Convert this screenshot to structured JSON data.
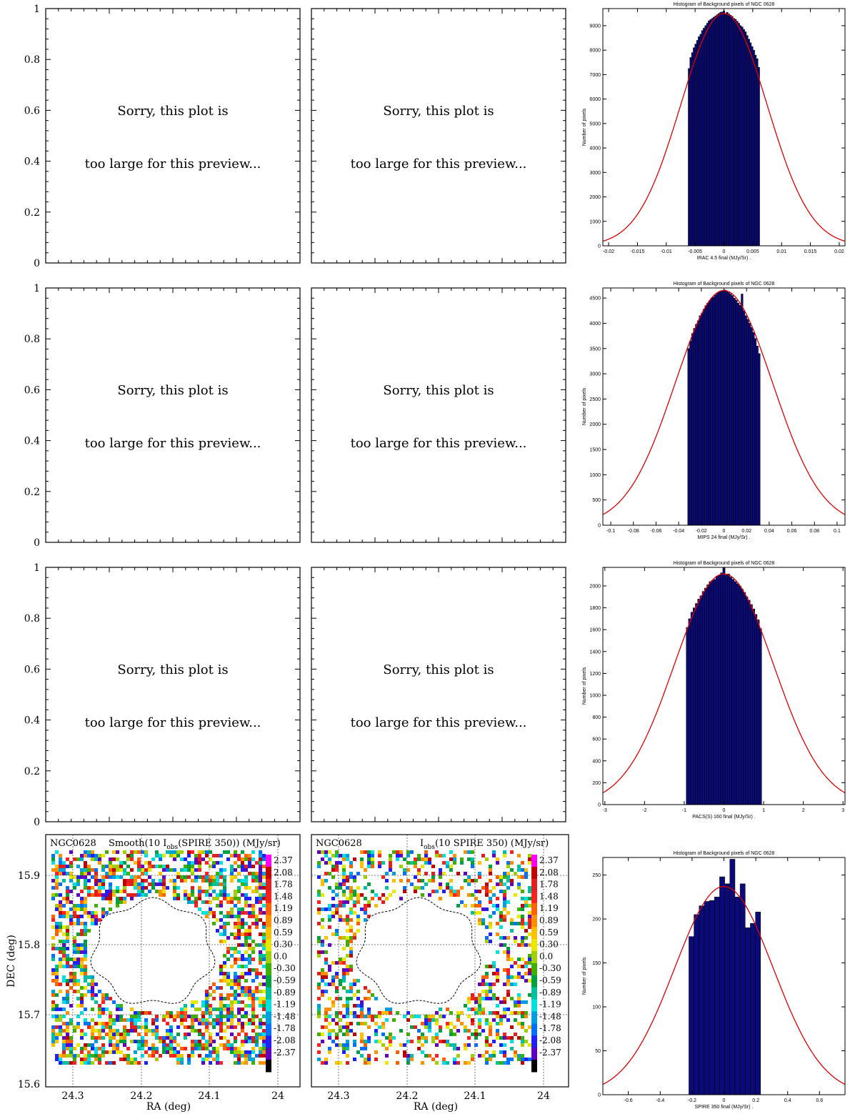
{
  "colors": {
    "bar_fill": "#0a0a78",
    "bar_edge": "#000000",
    "fit_line": "#e00000",
    "axis": "#000000"
  },
  "placeholder": {
    "line1": "Sorry, this plot is",
    "line2": "too large for this preview..."
  },
  "placeholder_yticks": [
    "0",
    "0.2",
    "0.4",
    "0.6",
    "0.8",
    "1"
  ],
  "map_axes": {
    "xlabel": "RA (deg)",
    "ylabel": "DEC (deg)",
    "xticks": [
      "24.3",
      "24.2",
      "24.1",
      "24"
    ],
    "yticks": [
      "15.6",
      "15.7",
      "15.8",
      "15.9"
    ]
  },
  "maps": [
    {
      "galaxy": "NGC0628",
      "title": "Smooth(10 I",
      "title_sub": "obs",
      "title_tail": "(SPIRE 350)) (MJy/sr)"
    },
    {
      "galaxy": "NGC0628",
      "title": "I",
      "title_sub": "obs",
      "title_tail": "(10 SPIRE 350) (MJy/sr)"
    }
  ],
  "colorbar": {
    "labels": [
      "2.37",
      "2.08",
      "1.78",
      "1.48",
      "1.19",
      "0.89",
      "0.59",
      "0.30",
      "0.0",
      "-0.30",
      "-0.59",
      "-0.89",
      "-1.19",
      "-1.48",
      "-1.78",
      "-2.08",
      "-2.37"
    ],
    "colors": [
      "#ff00ff",
      "#c00000",
      "#e02020",
      "#ff2020",
      "#ff6000",
      "#ff9000",
      "#ffc000",
      "#e8e800",
      "#a0d000",
      "#40b000",
      "#00a040",
      "#00c0a0",
      "#00e0e0",
      "#00a0e0",
      "#0070ff",
      "#2020ff",
      "#6000c0",
      "#000000"
    ]
  },
  "chart_data": [
    {
      "type": "bar",
      "title": "Histogram of Background pixels of NGC 0628",
      "xlabel": "IRAC 4.5 final   (MJy/Sr)  .",
      "ylabel": "Number of pixels",
      "xlim": [
        -0.021,
        0.021
      ],
      "ylim": [
        0,
        9700
      ],
      "xticks": [
        -0.02,
        -0.015,
        -0.01,
        -0.005,
        0,
        0.005,
        0.01,
        0.015,
        0.02
      ],
      "xtick_labels": [
        "-0.02",
        "-0.015",
        "-0.01",
        "-0.005",
        "0",
        "0.005",
        "0.01",
        "0.015",
        "0.02"
      ],
      "yticks": [
        0,
        1000,
        2000,
        3000,
        4000,
        5000,
        6000,
        7000,
        8000,
        9000
      ],
      "bin_range": [
        -0.0062,
        0.0062
      ],
      "counts": [
        7250,
        7700,
        7900,
        8100,
        8250,
        8400,
        8550,
        8650,
        8800,
        8900,
        9000,
        9100,
        9200,
        9250,
        9300,
        9350,
        9400,
        9450,
        9500,
        9550,
        9560,
        9600,
        9500,
        9550,
        9480,
        9430,
        9380,
        9300,
        9260,
        9180,
        9100,
        9000,
        8950,
        8850,
        8750,
        8600,
        8450,
        8300,
        8150,
        8000,
        7800,
        7650,
        7300
      ],
      "fit": {
        "amplitude": 9500,
        "mean": 0,
        "sigma": 0.0075
      }
    },
    {
      "type": "bar",
      "title": "Histogram of Background pixels of NGC 0628",
      "xlabel": "MIPS 24 final   (MJy/Sr)  .",
      "ylabel": "Number of pixels",
      "xlim": [
        -0.107,
        0.107
      ],
      "ylim": [
        0,
        4700
      ],
      "xticks": [
        -0.1,
        -0.08,
        -0.06,
        -0.04,
        -0.02,
        0,
        0.02,
        0.04,
        0.06,
        0.08,
        0.1
      ],
      "xtick_labels": [
        "-0.1",
        "-0.08",
        "-0.06",
        "-0.04",
        "-0.02",
        "0",
        "0.02",
        "0.04",
        "0.06",
        "0.08",
        "0.1"
      ],
      "yticks": [
        0,
        500,
        1000,
        1500,
        2000,
        2500,
        3000,
        3500,
        4000,
        4500
      ],
      "bin_range": [
        -0.032,
        0.032
      ],
      "counts": [
        3500,
        3650,
        3800,
        3900,
        3980,
        4050,
        4150,
        4200,
        4280,
        4350,
        4400,
        4450,
        4500,
        4520,
        4560,
        4600,
        4620,
        4640,
        4650,
        4660,
        4640,
        4610,
        4580,
        4550,
        4500,
        4460,
        4400,
        4360,
        4580,
        4250,
        4150,
        4080,
        4000,
        3920,
        3820,
        3700,
        3550,
        3400
      ],
      "fit": {
        "amplitude": 4650,
        "mean": 0,
        "sigma": 0.043
      }
    },
    {
      "type": "bar",
      "title": "Histogram of Background pixels of NGC 0628",
      "xlabel": "PACS(S) 160 final   (MJy/Sr)  .",
      "ylabel": "Number of pixels",
      "xlim": [
        -3.05,
        3.05
      ],
      "ylim": [
        0,
        2170
      ],
      "xticks": [
        -3,
        -2,
        -1,
        0,
        1,
        2,
        3
      ],
      "xtick_labels": [
        "-3",
        "-2",
        "-1",
        "0",
        "1",
        "2",
        "3"
      ],
      "yticks": [
        0,
        200,
        400,
        600,
        800,
        1000,
        1200,
        1400,
        1600,
        1800,
        2000
      ],
      "bin_range": [
        -0.95,
        0.95
      ],
      "counts": [
        1620,
        1700,
        1760,
        1800,
        1840,
        1880,
        1910,
        1950,
        1980,
        2010,
        2040,
        2050,
        2060,
        2090,
        2100,
        2120,
        2170,
        2100,
        2110,
        2080,
        2060,
        2040,
        2020,
        2000,
        1970,
        1940,
        1900,
        1870,
        1830,
        1790,
        1740,
        1690,
        1610
      ],
      "fit": {
        "amplitude": 2110,
        "mean": 0,
        "sigma": 1.25
      }
    },
    {
      "type": "bar",
      "title": "Histogram of Background pixels of NGC 0628",
      "xlabel": "SPIRE 350 final   (MJy/Sr)  .",
      "ylabel": "Number of pixels",
      "xlim": [
        -0.76,
        0.76
      ],
      "ylim": [
        0,
        270
      ],
      "xticks": [
        -0.6,
        -0.4,
        -0.2,
        0,
        0.2,
        0.4,
        0.6
      ],
      "xtick_labels": [
        "-0.6",
        "-0.4",
        "-0.2",
        "0",
        "0.2",
        "0.4",
        "0.6"
      ],
      "yticks": [
        0,
        50,
        100,
        150,
        200,
        250
      ],
      "bin_range": [
        -0.22,
        0.23
      ],
      "counts": [
        180,
        205,
        215,
        220,
        221,
        225,
        248,
        240,
        268,
        225,
        240,
        190,
        195,
        208
      ],
      "fit": {
        "amplitude": 237,
        "mean": 0,
        "sigma": 0.31
      }
    }
  ]
}
